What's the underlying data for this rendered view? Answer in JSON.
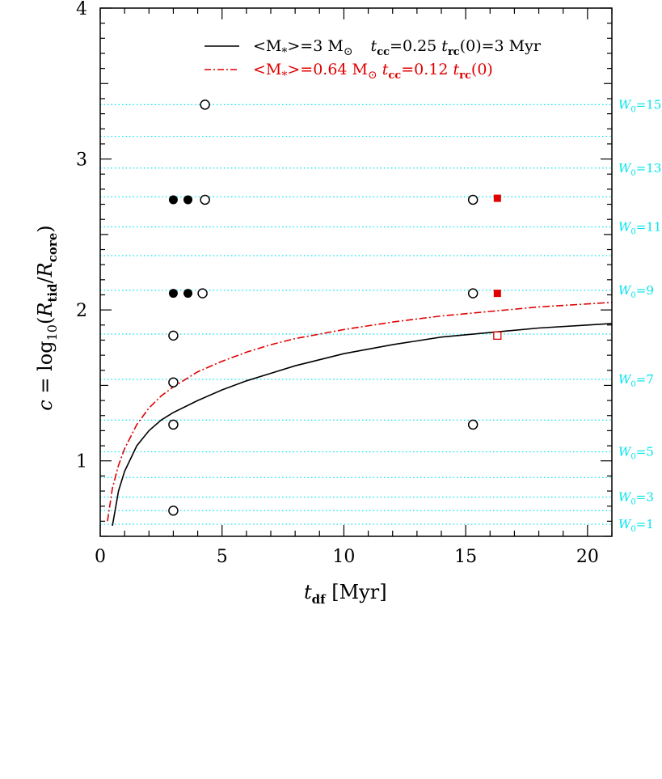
{
  "chart_data": {
    "type": "scatter",
    "xlabel": "t_df [Myr]",
    "ylabel": "c = log10(R_tid/R_core)",
    "xlim": [
      0,
      21
    ],
    "ylim": [
      0.5,
      4
    ],
    "x_ticks": [
      0,
      5,
      10,
      15,
      20
    ],
    "y_ticks": [
      1,
      2,
      3,
      4
    ],
    "grid": false,
    "legend_position": "top-right",
    "legend": [
      {
        "text": "<M*>=3 M⊙   t_cc=0.25 t_rc(0)=3 Myr",
        "color": "#000000",
        "style": "solid"
      },
      {
        "text": "<M*>=0.64 M⊙ t_cc=0.12 t_rc(0)",
        "color": "#e00000",
        "style": "dash-dot"
      }
    ],
    "w0_lines": [
      {
        "c": 0.58,
        "label": "W0=1"
      },
      {
        "c": 0.67,
        "label": ""
      },
      {
        "c": 0.76,
        "label": "W0=3"
      },
      {
        "c": 0.89,
        "label": ""
      },
      {
        "c": 1.06,
        "label": "W0=5"
      },
      {
        "c": 1.27,
        "label": ""
      },
      {
        "c": 1.54,
        "label": "W0=7"
      },
      {
        "c": 1.84,
        "label": ""
      },
      {
        "c": 2.13,
        "label": "W0=9"
      },
      {
        "c": 2.36,
        "label": ""
      },
      {
        "c": 2.55,
        "label": "W0=11"
      },
      {
        "c": 2.75,
        "label": ""
      },
      {
        "c": 2.94,
        "label": "W0=13"
      },
      {
        "c": 3.15,
        "label": ""
      },
      {
        "c": 3.36,
        "label": "W0=15"
      }
    ],
    "series": [
      {
        "name": "<M*>=3 M⊙   t_cc=0.25 t_rc(0)=3 Myr",
        "kind": "curve",
        "color": "#000000",
        "x": [
          0.5,
          0.75,
          1,
          1.5,
          2,
          2.5,
          3,
          4,
          5,
          6,
          7,
          8,
          9,
          10,
          12,
          14,
          16,
          18,
          20,
          21
        ],
        "y": [
          0.57,
          0.8,
          0.93,
          1.1,
          1.2,
          1.27,
          1.32,
          1.4,
          1.47,
          1.53,
          1.58,
          1.63,
          1.67,
          1.71,
          1.77,
          1.82,
          1.85,
          1.88,
          1.9,
          1.91
        ]
      },
      {
        "name": "<M*>=0.64 M⊙ t_cc=0.12 t_rc(0)",
        "kind": "curve",
        "color": "#e00000",
        "x": [
          0.3,
          0.5,
          0.75,
          1,
          1.5,
          2,
          2.5,
          3,
          4,
          5,
          6,
          7,
          8,
          9,
          10,
          12,
          14,
          16,
          18,
          20,
          21
        ],
        "y": [
          0.6,
          0.82,
          0.97,
          1.08,
          1.24,
          1.35,
          1.43,
          1.49,
          1.59,
          1.66,
          1.72,
          1.77,
          1.81,
          1.84,
          1.87,
          1.92,
          1.96,
          1.99,
          2.02,
          2.04,
          2.05
        ]
      },
      {
        "kind": "points-open-circle",
        "color": "#000000",
        "x": [
          3.0,
          3.0,
          3.0,
          3.0,
          4.3,
          4.3,
          4.2,
          15.3,
          15.3,
          15.3
        ],
        "y": [
          0.67,
          1.24,
          1.52,
          1.83,
          3.36,
          2.73,
          2.11,
          2.73,
          2.11,
          1.24
        ]
      },
      {
        "kind": "points-filled-circle",
        "color": "#000000",
        "x": [
          3.0,
          3.6,
          3.0,
          3.6
        ],
        "y": [
          2.73,
          2.73,
          2.11,
          2.11
        ]
      },
      {
        "kind": "points-filled-square",
        "color": "#e00000",
        "x": [
          16.3,
          16.3
        ],
        "y": [
          2.74,
          2.11
        ]
      },
      {
        "kind": "points-open-square",
        "color": "#e00000",
        "x": [
          16.3
        ],
        "y": [
          1.83
        ]
      }
    ]
  }
}
